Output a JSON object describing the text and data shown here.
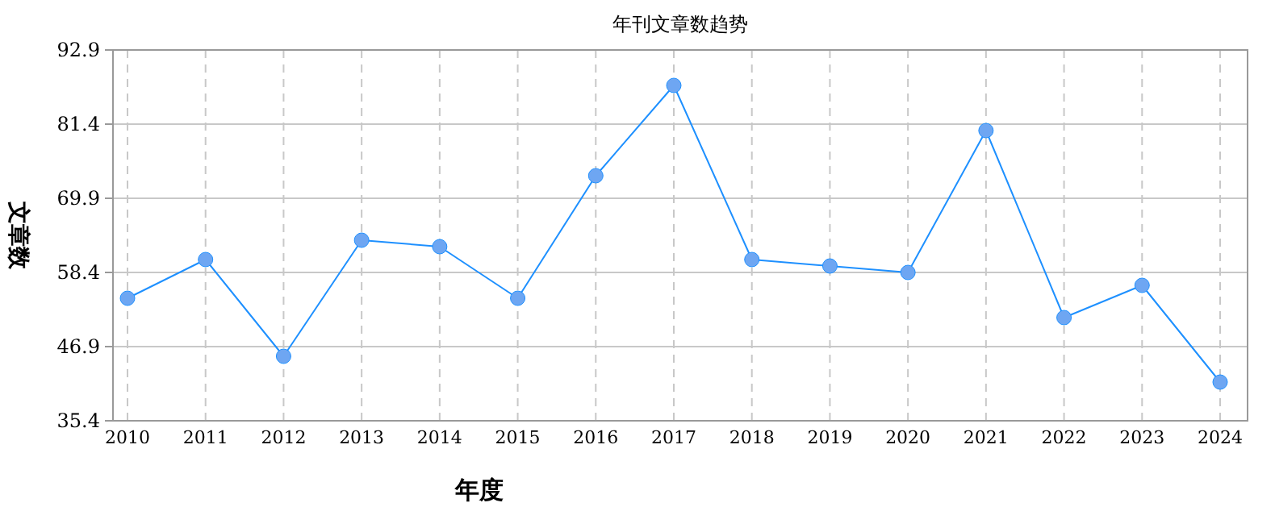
{
  "chart_data": {
    "type": "line",
    "title": "年刊文章数趋势",
    "xlabel": "年度",
    "ylabel": "文章数",
    "categories": [
      "2010",
      "2011",
      "2012",
      "2013",
      "2014",
      "2015",
      "2016",
      "2017",
      "2018",
      "2019",
      "2020",
      "2021",
      "2022",
      "2023",
      "2024"
    ],
    "series": [
      {
        "color": "#1e90ff",
        "values": [
          54.4,
          60.4,
          45.4,
          63.4,
          62.4,
          54.4,
          73.4,
          87.4,
          60.4,
          59.4,
          58.4,
          80.4,
          51.4,
          56.4,
          41.4
        ]
      }
    ],
    "ylim": [
      35.4,
      92.9
    ],
    "yticks": [
      35.4,
      46.9,
      58.4,
      69.9,
      81.4,
      92.9
    ],
    "grid": true,
    "marker": "circle",
    "line_style": "solid"
  }
}
